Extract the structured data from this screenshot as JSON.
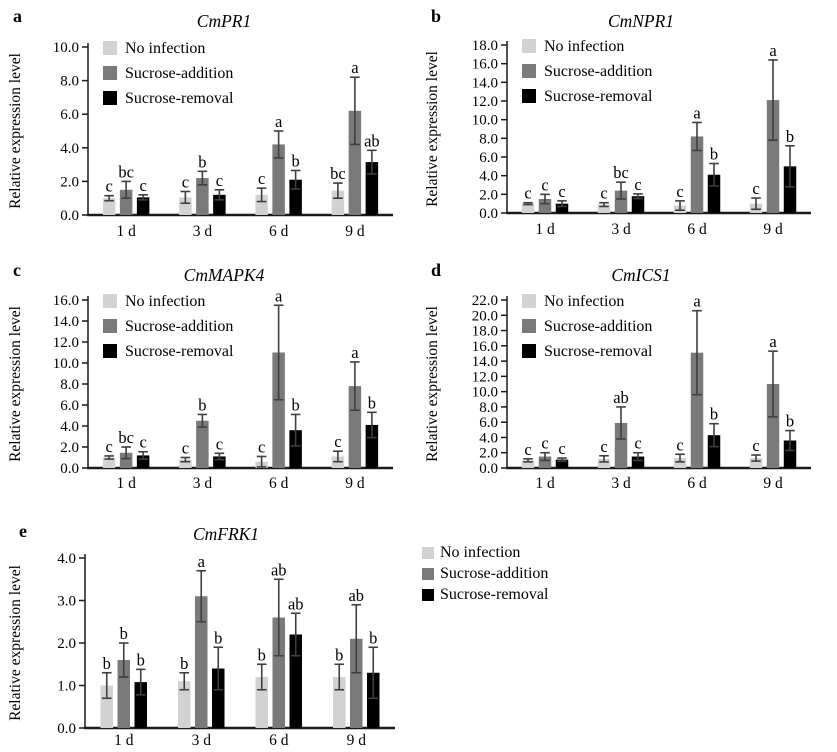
{
  "figure": {
    "ylabel": "Relative expression level",
    "categories": [
      "1 d",
      "3 d",
      "6 d",
      "9 d"
    ],
    "legend_items": [
      {
        "label": "No infection",
        "color": "#d2d2d2"
      },
      {
        "label": "Sucrose-addition",
        "color": "#7a7a7a"
      },
      {
        "label": "Sucrose-removal",
        "color": "#000000"
      }
    ],
    "axis_color": "#1a1a1a",
    "error_bar_color": "#3f3f3f"
  },
  "chart_data": [
    {
      "type": "bar",
      "panel_label": "a",
      "title": "CmPR1",
      "ylabel": "Relative expression level",
      "categories": [
        "1 d",
        "3 d",
        "6 d",
        "9 d"
      ],
      "ylim": [
        0,
        10
      ],
      "ytick_step": 2,
      "ytick_decimals": 1,
      "grid": false,
      "legend_position": "inside-top-left",
      "series": [
        {
          "name": "No infection",
          "color": "#d2d2d2",
          "values": [
            1.0,
            1.05,
            1.2,
            1.45
          ],
          "errors": [
            0.15,
            0.35,
            0.4,
            0.45
          ],
          "sig_letters": [
            "c",
            "c",
            "c",
            "bc"
          ]
        },
        {
          "name": "Sucrose-addition",
          "color": "#7a7a7a",
          "values": [
            1.5,
            2.2,
            4.2,
            6.2
          ],
          "errors": [
            0.5,
            0.4,
            0.8,
            2.0
          ],
          "sig_letters": [
            "bc",
            "b",
            "a",
            "a"
          ]
        },
        {
          "name": "Sucrose-removal",
          "color": "#000000",
          "values": [
            1.05,
            1.2,
            2.1,
            3.15
          ],
          "errors": [
            0.15,
            0.3,
            0.55,
            0.7
          ],
          "sig_letters": [
            "c",
            "c",
            "b",
            "ab"
          ]
        }
      ]
    },
    {
      "type": "bar",
      "panel_label": "b",
      "title": "CmNPR1",
      "ylabel": "Relative expression level",
      "categories": [
        "1 d",
        "3 d",
        "6 d",
        "9 d"
      ],
      "ylim": [
        0,
        18
      ],
      "ytick_step": 2,
      "ytick_decimals": 1,
      "grid": false,
      "legend_position": "inside-top-left",
      "series": [
        {
          "name": "No infection",
          "color": "#d2d2d2",
          "values": [
            1.0,
            0.9,
            0.8,
            1.0
          ],
          "errors": [
            0.1,
            0.2,
            0.5,
            0.6
          ],
          "sig_letters": [
            "c",
            "c",
            "c",
            "c"
          ]
        },
        {
          "name": "Sucrose-addition",
          "color": "#7a7a7a",
          "values": [
            1.5,
            2.4,
            8.2,
            12.1
          ],
          "errors": [
            0.5,
            0.9,
            1.5,
            4.3
          ],
          "sig_letters": [
            "c",
            "bc",
            "a",
            "a"
          ]
        },
        {
          "name": "Sucrose-removal",
          "color": "#000000",
          "values": [
            1.0,
            1.8,
            4.1,
            5.0
          ],
          "errors": [
            0.3,
            0.25,
            1.2,
            2.2
          ],
          "sig_letters": [
            "c",
            "c",
            "b",
            "b"
          ]
        }
      ]
    },
    {
      "type": "bar",
      "panel_label": "c",
      "title": "CmMAPK4",
      "ylabel": "Relative expression level",
      "categories": [
        "1 d",
        "3 d",
        "6 d",
        "9 d"
      ],
      "ylim": [
        0,
        16
      ],
      "ytick_step": 2,
      "ytick_decimals": 1,
      "grid": false,
      "legend_position": "inside-top-left",
      "series": [
        {
          "name": "No infection",
          "color": "#d2d2d2",
          "values": [
            1.0,
            0.8,
            0.6,
            1.1
          ],
          "errors": [
            0.15,
            0.2,
            0.5,
            0.5
          ],
          "sig_letters": [
            "c",
            "c",
            "c",
            "c"
          ]
        },
        {
          "name": "Sucrose-addition",
          "color": "#7a7a7a",
          "values": [
            1.45,
            4.5,
            11.0,
            7.8
          ],
          "errors": [
            0.55,
            0.6,
            4.5,
            2.3
          ],
          "sig_letters": [
            "bc",
            "b",
            "a",
            "a"
          ]
        },
        {
          "name": "Sucrose-removal",
          "color": "#000000",
          "values": [
            1.2,
            1.1,
            3.6,
            4.1
          ],
          "errors": [
            0.35,
            0.3,
            1.5,
            1.2
          ],
          "sig_letters": [
            "c",
            "c",
            "b",
            "b"
          ]
        }
      ]
    },
    {
      "type": "bar",
      "panel_label": "d",
      "title": "CmICS1",
      "ylabel": "Relative expression level",
      "categories": [
        "1 d",
        "3 d",
        "6 d",
        "9 d"
      ],
      "ylim": [
        0,
        22
      ],
      "ytick_step": 2,
      "ytick_decimals": 1,
      "grid": false,
      "legend_position": "inside-top-left",
      "series": [
        {
          "name": "No infection",
          "color": "#d2d2d2",
          "values": [
            1.0,
            1.2,
            1.3,
            1.3
          ],
          "errors": [
            0.2,
            0.4,
            0.5,
            0.4
          ],
          "sig_letters": [
            "c",
            "c",
            "c",
            "c"
          ]
        },
        {
          "name": "Sucrose-addition",
          "color": "#7a7a7a",
          "values": [
            1.5,
            5.9,
            15.1,
            11.0
          ],
          "errors": [
            0.5,
            2.1,
            5.5,
            4.3
          ],
          "sig_letters": [
            "c",
            "ab",
            "a",
            "a"
          ]
        },
        {
          "name": "Sucrose-removal",
          "color": "#000000",
          "values": [
            1.1,
            1.5,
            4.3,
            3.6
          ],
          "errors": [
            0.2,
            0.5,
            1.5,
            1.3
          ],
          "sig_letters": [
            "c",
            "c",
            "b",
            "b"
          ]
        }
      ]
    },
    {
      "type": "bar",
      "panel_label": "e",
      "title": "CmFRK1",
      "ylabel": "Relative expression level",
      "categories": [
        "1 d",
        "3 d",
        "6 d",
        "9 d"
      ],
      "ylim": [
        0,
        4
      ],
      "ytick_step": 1,
      "ytick_decimals": 1,
      "grid": false,
      "legend_position": "outside-right",
      "series": [
        {
          "name": "No infection",
          "color": "#d2d2d2",
          "values": [
            1.0,
            1.1,
            1.2,
            1.2
          ],
          "errors": [
            0.3,
            0.2,
            0.3,
            0.3
          ],
          "sig_letters": [
            "b",
            "b",
            "b",
            "b"
          ]
        },
        {
          "name": "Sucrose-addition",
          "color": "#7a7a7a",
          "values": [
            1.6,
            3.1,
            2.6,
            2.1
          ],
          "errors": [
            0.4,
            0.6,
            0.9,
            0.8
          ],
          "sig_letters": [
            "b",
            "a",
            "ab",
            "ab"
          ]
        },
        {
          "name": "Sucrose-removal",
          "color": "#000000",
          "values": [
            1.08,
            1.4,
            2.2,
            1.3
          ],
          "errors": [
            0.3,
            0.5,
            0.5,
            0.6
          ],
          "sig_letters": [
            "b",
            "b",
            "ab",
            "b"
          ]
        }
      ]
    }
  ]
}
